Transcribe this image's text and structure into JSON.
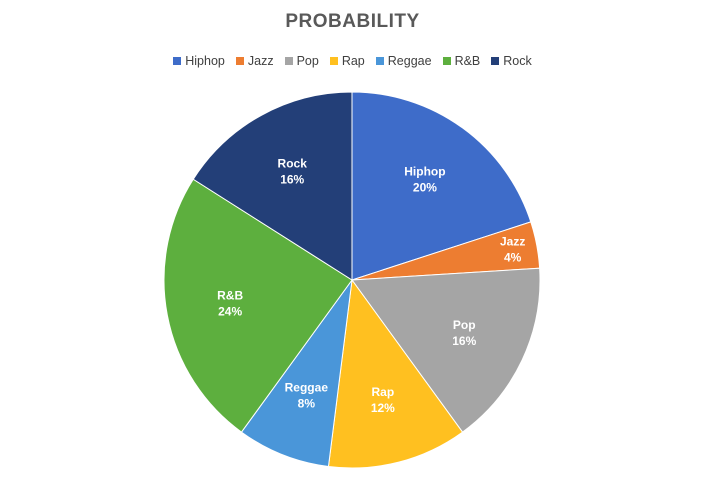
{
  "chart_data": {
    "type": "pie",
    "title": "PROBABILITY",
    "legend_position": "top",
    "slices": [
      {
        "name": "Hiphop",
        "value": 20,
        "label": "20%",
        "color": "#3E6CC9"
      },
      {
        "name": "Jazz",
        "value": 4,
        "label": "4%",
        "color": "#ED7D31"
      },
      {
        "name": "Pop",
        "value": 16,
        "label": "16%",
        "color": "#A5A5A5"
      },
      {
        "name": "Rap",
        "value": 12,
        "label": "12%",
        "color": "#FFC020"
      },
      {
        "name": "Reggae",
        "value": 8,
        "label": "8%",
        "color": "#4A96D9"
      },
      {
        "name": "R&B",
        "value": 24,
        "label": "24%",
        "color": "#5DAF3E"
      },
      {
        "name": "Rock",
        "value": 16,
        "label": "16%",
        "color": "#233F78"
      }
    ]
  }
}
